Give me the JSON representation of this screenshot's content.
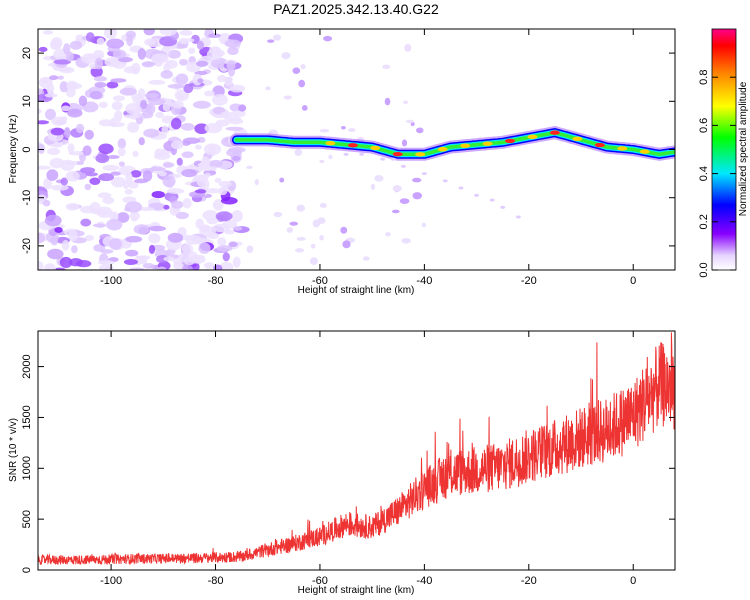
{
  "title": "PAZ1.2025.342.13.40.G22",
  "chart_data": [
    {
      "type": "heatmap",
      "xlabel": "Height of straight line (km)",
      "ylabel": "Frequency (Hz)",
      "xlim": [
        -114,
        8
      ],
      "ylim": [
        -25,
        25
      ],
      "xticks": [
        -100,
        -80,
        -60,
        -40,
        -20,
        0
      ],
      "yticks": [
        -20,
        -10,
        0,
        10,
        20
      ],
      "colorbar": {
        "label": "Normalized spectral amplitude",
        "range": [
          0,
          1
        ],
        "ticks": [
          0.0,
          0.2,
          0.4,
          0.6,
          0.8
        ]
      },
      "noise_region_x": [
        -114,
        -75
      ],
      "signal_track": {
        "x": [
          -76,
          -70,
          -65,
          -60,
          -55,
          -50,
          -45,
          -40,
          -35,
          -30,
          -25,
          -20,
          -15,
          -10,
          -5,
          0,
          5,
          8
        ],
        "freq_hz": [
          2,
          2,
          1.5,
          1.5,
          1,
          0.5,
          -1,
          -1,
          0.5,
          1,
          1.5,
          2.5,
          3.5,
          2,
          0.5,
          0,
          -1,
          -0.5
        ]
      }
    },
    {
      "type": "line",
      "xlabel": "Height of straight line (km)",
      "ylabel": "SNR (10 * v/v)",
      "xlim": [
        -114,
        8
      ],
      "ylim": [
        0,
        2350
      ],
      "xticks": [
        -100,
        -80,
        -60,
        -40,
        -20,
        0
      ],
      "yticks": [
        0,
        500,
        1000,
        1500,
        2000
      ],
      "series": [
        {
          "name": "SNR",
          "color": "#ee3333",
          "x": [
            -114,
            -105,
            -95,
            -85,
            -75,
            -70,
            -65,
            -60,
            -55,
            -50,
            -45,
            -40,
            -35,
            -30,
            -25,
            -20,
            -15,
            -10,
            -5,
            0,
            5,
            8
          ],
          "values": [
            100,
            100,
            110,
            115,
            130,
            200,
            260,
            330,
            450,
            420,
            580,
            800,
            950,
            980,
            1020,
            1120,
            1200,
            1300,
            1380,
            1520,
            1820,
            1800
          ]
        }
      ]
    }
  ]
}
